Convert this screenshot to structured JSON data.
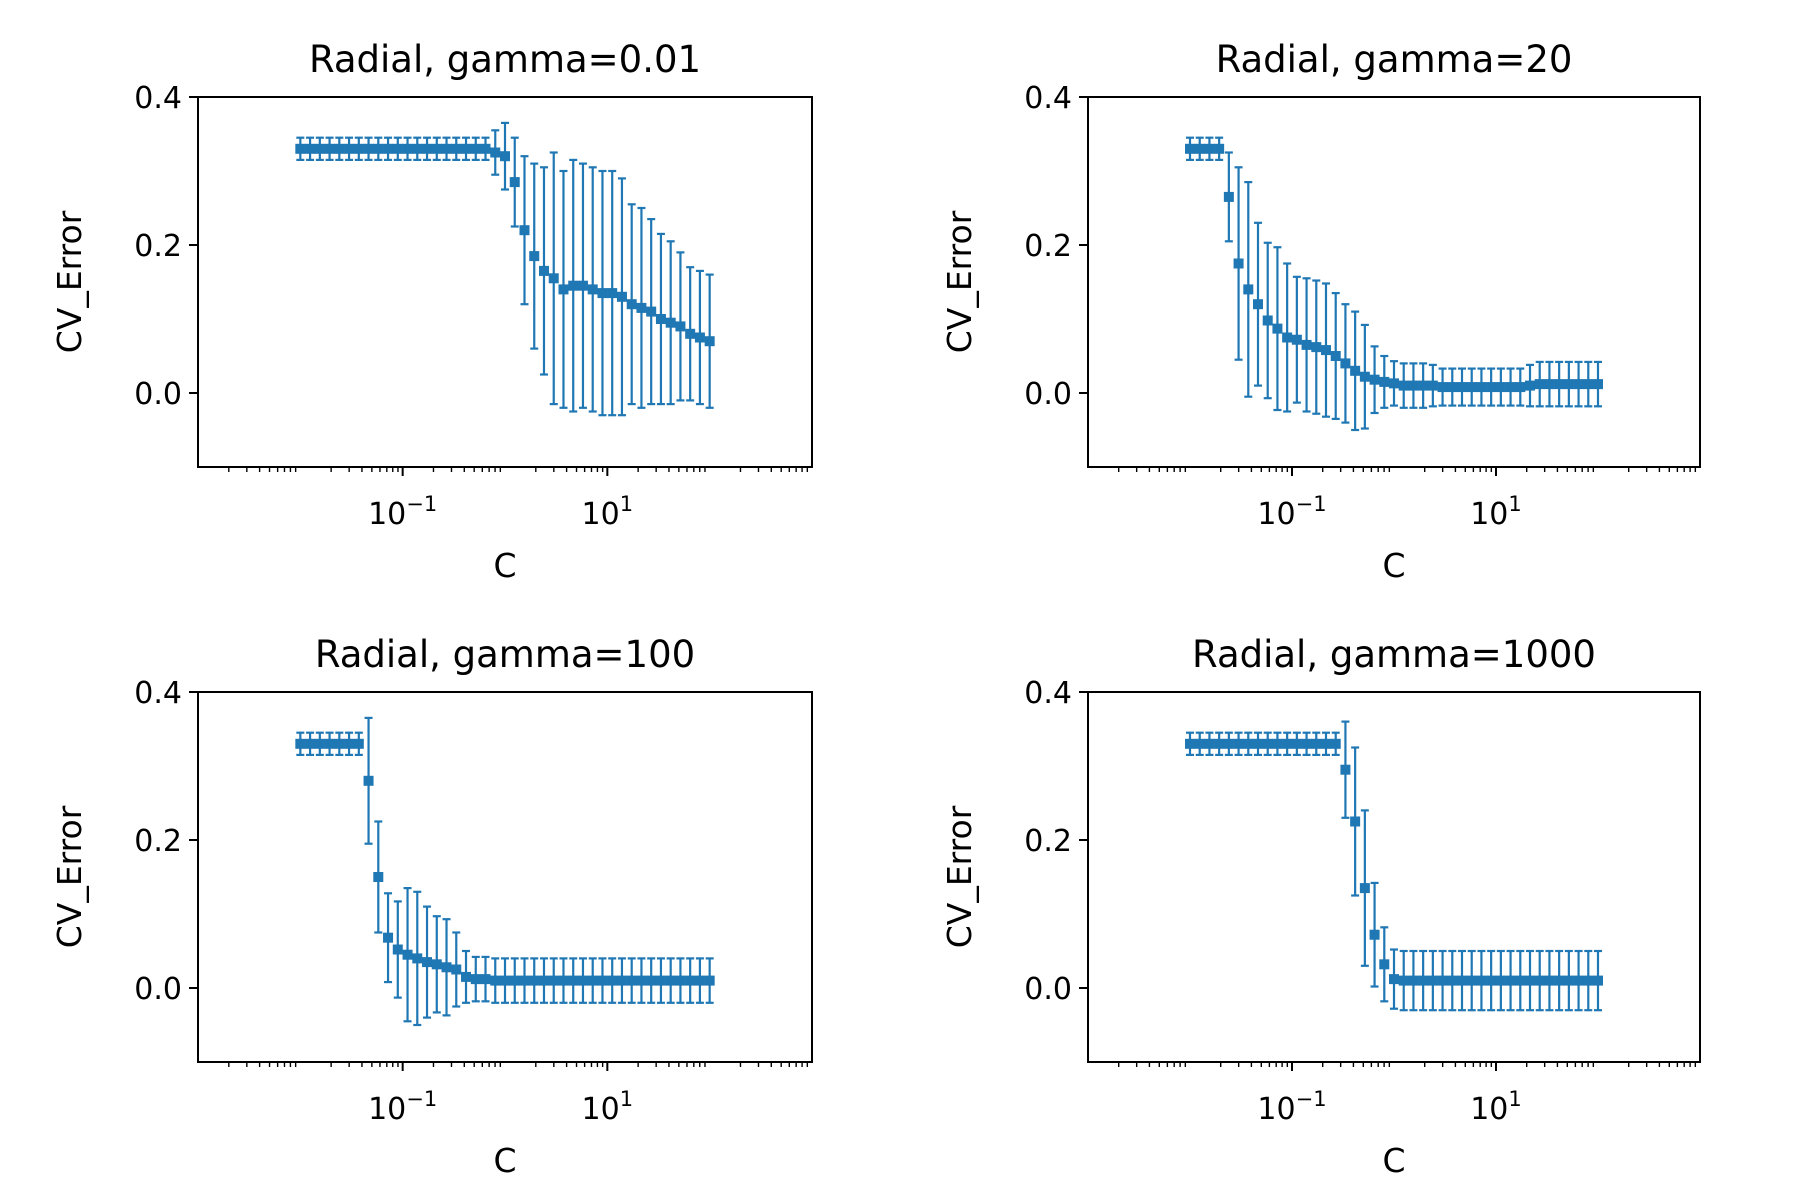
{
  "chart_data": [
    {
      "type": "scatter",
      "title": "Radial, gamma=0.01",
      "xlabel": "C",
      "ylabel": "CV_Error",
      "xscale": "log",
      "xlim": [
        0.001,
        1000
      ],
      "ylim": [
        -0.1,
        0.4
      ],
      "yticks": [
        "0.0",
        "0.2",
        "0.4"
      ],
      "xticks": [
        {
          "base": "10",
          "exp": "−1",
          "value": 0.1
        },
        {
          "base": "10",
          "exp": "1",
          "value": 10
        }
      ],
      "color": "#1f77b4",
      "error_bars": true,
      "x_start": 0.01,
      "x_end": 100,
      "y": [
        0.33,
        0.33,
        0.33,
        0.33,
        0.33,
        0.33,
        0.33,
        0.33,
        0.33,
        0.33,
        0.33,
        0.33,
        0.33,
        0.33,
        0.33,
        0.33,
        0.33,
        0.33,
        0.33,
        0.33,
        0.325,
        0.32,
        0.285,
        0.22,
        0.185,
        0.165,
        0.155,
        0.14,
        0.145,
        0.145,
        0.14,
        0.135,
        0.135,
        0.13,
        0.12,
        0.115,
        0.11,
        0.1,
        0.095,
        0.09,
        0.08,
        0.075,
        0.07
      ],
      "err": [
        0.015,
        0.015,
        0.015,
        0.015,
        0.015,
        0.015,
        0.015,
        0.015,
        0.015,
        0.015,
        0.015,
        0.015,
        0.015,
        0.015,
        0.015,
        0.015,
        0.015,
        0.015,
        0.015,
        0.015,
        0.03,
        0.045,
        0.06,
        0.1,
        0.125,
        0.14,
        0.17,
        0.16,
        0.17,
        0.165,
        0.165,
        0.165,
        0.165,
        0.16,
        0.135,
        0.135,
        0.125,
        0.115,
        0.11,
        0.1,
        0.09,
        0.09,
        0.09
      ]
    },
    {
      "type": "scatter",
      "title": "Radial, gamma=20",
      "xlabel": "C",
      "ylabel": "CV_Error",
      "xscale": "log",
      "xlim": [
        0.001,
        1000
      ],
      "ylim": [
        -0.1,
        0.4
      ],
      "yticks": [
        "0.0",
        "0.2",
        "0.4"
      ],
      "xticks": [
        {
          "base": "10",
          "exp": "−1",
          "value": 0.1
        },
        {
          "base": "10",
          "exp": "1",
          "value": 10
        }
      ],
      "color": "#1f77b4",
      "error_bars": true,
      "x_start": 0.01,
      "x_end": 100,
      "y": [
        0.33,
        0.33,
        0.33,
        0.33,
        0.265,
        0.175,
        0.14,
        0.12,
        0.098,
        0.087,
        0.075,
        0.072,
        0.065,
        0.062,
        0.058,
        0.05,
        0.04,
        0.03,
        0.022,
        0.018,
        0.015,
        0.013,
        0.01,
        0.01,
        0.01,
        0.01,
        0.008,
        0.008,
        0.008,
        0.008,
        0.008,
        0.008,
        0.008,
        0.008,
        0.008,
        0.01,
        0.012,
        0.012,
        0.012,
        0.012,
        0.012,
        0.012,
        0.012
      ],
      "err": [
        0.015,
        0.015,
        0.015,
        0.015,
        0.06,
        0.13,
        0.145,
        0.11,
        0.105,
        0.11,
        0.1,
        0.085,
        0.09,
        0.09,
        0.09,
        0.085,
        0.08,
        0.08,
        0.07,
        0.045,
        0.035,
        0.03,
        0.03,
        0.03,
        0.03,
        0.028,
        0.025,
        0.025,
        0.025,
        0.025,
        0.025,
        0.025,
        0.025,
        0.025,
        0.025,
        0.028,
        0.03,
        0.03,
        0.03,
        0.03,
        0.03,
        0.03,
        0.03
      ]
    },
    {
      "type": "scatter",
      "title": "Radial, gamma=100",
      "xlabel": "C",
      "ylabel": "CV_Error",
      "xscale": "log",
      "xlim": [
        0.001,
        1000
      ],
      "ylim": [
        -0.1,
        0.4
      ],
      "yticks": [
        "0.0",
        "0.2",
        "0.4"
      ],
      "xticks": [
        {
          "base": "10",
          "exp": "−1",
          "value": 0.1
        },
        {
          "base": "10",
          "exp": "1",
          "value": 10
        }
      ],
      "color": "#1f77b4",
      "error_bars": true,
      "x_start": 0.01,
      "x_end": 100,
      "y": [
        0.33,
        0.33,
        0.33,
        0.33,
        0.33,
        0.33,
        0.33,
        0.28,
        0.15,
        0.068,
        0.052,
        0.045,
        0.04,
        0.035,
        0.032,
        0.028,
        0.025,
        0.015,
        0.012,
        0.012,
        0.01,
        0.01,
        0.01,
        0.01,
        0.01,
        0.01,
        0.01,
        0.01,
        0.01,
        0.01,
        0.01,
        0.01,
        0.01,
        0.01,
        0.01,
        0.01,
        0.01,
        0.01,
        0.01,
        0.01,
        0.01,
        0.01,
        0.01
      ],
      "err": [
        0.015,
        0.015,
        0.015,
        0.015,
        0.015,
        0.015,
        0.015,
        0.085,
        0.075,
        0.06,
        0.065,
        0.09,
        0.09,
        0.075,
        0.065,
        0.065,
        0.05,
        0.035,
        0.03,
        0.03,
        0.03,
        0.03,
        0.03,
        0.03,
        0.03,
        0.03,
        0.03,
        0.03,
        0.03,
        0.03,
        0.03,
        0.03,
        0.03,
        0.03,
        0.03,
        0.03,
        0.03,
        0.03,
        0.03,
        0.03,
        0.03,
        0.03,
        0.03
      ]
    },
    {
      "type": "scatter",
      "title": "Radial, gamma=1000",
      "xlabel": "C",
      "ylabel": "CV_Error",
      "xscale": "log",
      "xlim": [
        0.001,
        1000
      ],
      "ylim": [
        -0.1,
        0.4
      ],
      "yticks": [
        "0.0",
        "0.2",
        "0.4"
      ],
      "xticks": [
        {
          "base": "10",
          "exp": "−1",
          "value": 0.1
        },
        {
          "base": "10",
          "exp": "1",
          "value": 10
        }
      ],
      "color": "#1f77b4",
      "error_bars": true,
      "x_start": 0.01,
      "x_end": 100,
      "y": [
        0.33,
        0.33,
        0.33,
        0.33,
        0.33,
        0.33,
        0.33,
        0.33,
        0.33,
        0.33,
        0.33,
        0.33,
        0.33,
        0.33,
        0.33,
        0.33,
        0.295,
        0.225,
        0.135,
        0.072,
        0.032,
        0.012,
        0.01,
        0.01,
        0.01,
        0.01,
        0.01,
        0.01,
        0.01,
        0.01,
        0.01,
        0.01,
        0.01,
        0.01,
        0.01,
        0.01,
        0.01,
        0.01,
        0.01,
        0.01,
        0.01,
        0.01,
        0.01
      ],
      "err": [
        0.015,
        0.015,
        0.015,
        0.015,
        0.015,
        0.015,
        0.015,
        0.015,
        0.015,
        0.015,
        0.015,
        0.015,
        0.015,
        0.015,
        0.015,
        0.015,
        0.065,
        0.1,
        0.105,
        0.07,
        0.05,
        0.04,
        0.04,
        0.04,
        0.04,
        0.04,
        0.04,
        0.04,
        0.04,
        0.04,
        0.04,
        0.04,
        0.04,
        0.04,
        0.04,
        0.04,
        0.04,
        0.04,
        0.04,
        0.04,
        0.04,
        0.04,
        0.04
      ]
    }
  ]
}
